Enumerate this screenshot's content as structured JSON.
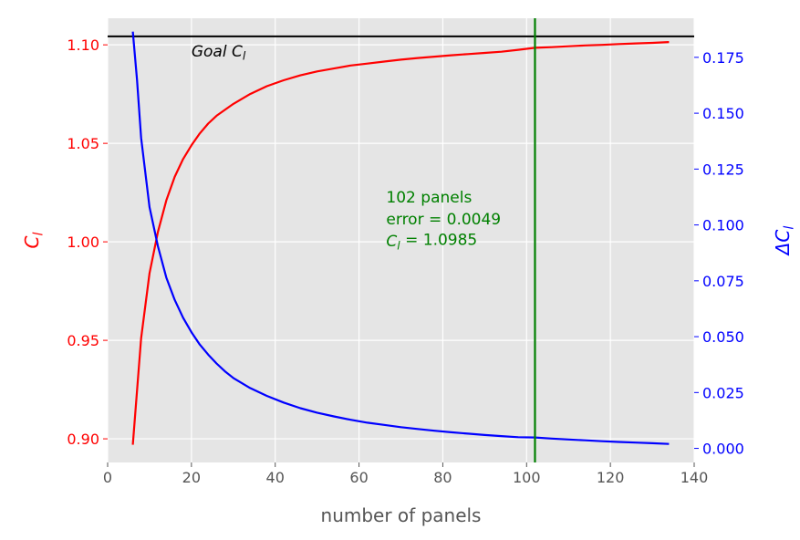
{
  "chart_data": {
    "type": "line",
    "xlabel": "number of panels",
    "ylabel_left": "C",
    "ylabel_left_sub": "l",
    "ylabel_right": "ΔC",
    "ylabel_right_sub": "l",
    "xlim": [
      0,
      140
    ],
    "ylim_left": [
      0.888,
      1.1135
    ],
    "ylim_right": [
      -0.0063,
      0.1925
    ],
    "grid": true,
    "background": "#e5e5e5",
    "x_ticks": [
      0,
      20,
      40,
      60,
      80,
      100,
      120,
      140
    ],
    "x_tick_labels": [
      "0",
      "20",
      "40",
      "60",
      "80",
      "100",
      "120",
      "140"
    ],
    "left_ticks": [
      0.9,
      0.95,
      1.0,
      1.05,
      1.1
    ],
    "left_tick_labels": [
      "0.90",
      "0.95",
      "1.00",
      "1.05",
      "1.10"
    ],
    "right_ticks": [
      0.0,
      0.025,
      0.05,
      0.075,
      0.1,
      0.125,
      0.15,
      0.175
    ],
    "right_tick_labels": [
      "0.000",
      "0.025",
      "0.050",
      "0.075",
      "0.100",
      "0.125",
      "0.150",
      "0.175"
    ],
    "series": [
      {
        "axis": "left",
        "color": "#ff0000",
        "x": [
          6,
          8,
          10,
          12,
          14,
          16,
          18,
          20,
          22,
          24,
          26,
          28,
          30,
          34,
          38,
          42,
          46,
          50,
          54,
          58,
          62,
          66,
          70,
          74,
          78,
          82,
          86,
          90,
          94,
          98,
          102,
          106,
          110,
          114,
          118,
          122,
          126,
          130,
          134
        ],
        "values": [
          0.897,
          0.951,
          0.984,
          1.005,
          1.021,
          1.033,
          1.042,
          1.049,
          1.055,
          1.06,
          1.064,
          1.067,
          1.07,
          1.075,
          1.079,
          1.082,
          1.0845,
          1.0865,
          1.088,
          1.0895,
          1.0905,
          1.0915,
          1.0925,
          1.0933,
          1.094,
          1.0947,
          1.0953,
          1.0959,
          1.0965,
          1.0975,
          1.0985,
          1.0988,
          1.0993,
          1.0997,
          1.1,
          1.1004,
          1.1007,
          1.101,
          1.1014
        ]
      },
      {
        "axis": "right",
        "color": "#0000ff",
        "x": [
          6,
          7,
          8,
          10,
          12,
          14,
          16,
          18,
          20,
          22,
          24,
          26,
          28,
          30,
          34,
          38,
          42,
          46,
          50,
          54,
          58,
          62,
          66,
          70,
          74,
          78,
          82,
          86,
          90,
          94,
          98,
          102,
          106,
          110,
          114,
          118,
          122,
          126,
          130,
          134
        ],
        "values": [
          0.1865,
          0.165,
          0.139,
          0.108,
          0.0905,
          0.0765,
          0.0665,
          0.0585,
          0.052,
          0.0465,
          0.042,
          0.038,
          0.0345,
          0.0315,
          0.027,
          0.0235,
          0.0205,
          0.018,
          0.016,
          0.0143,
          0.0128,
          0.0115,
          0.0105,
          0.0095,
          0.0087,
          0.0079,
          0.0072,
          0.0066,
          0.006,
          0.0055,
          0.005,
          0.0049,
          0.0044,
          0.004,
          0.0036,
          0.0032,
          0.0029,
          0.0026,
          0.0023,
          0.002
        ]
      }
    ],
    "goal_line": {
      "y": 1.1043,
      "color": "#000000",
      "label": "Goal C",
      "label_sub": "l",
      "label_x": 20
    },
    "marker_line": {
      "x": 102,
      "color": "#008000"
    },
    "annotation": {
      "color": "#008000",
      "x": 66.5,
      "lines": [
        "102 panels",
        "error = 0.0049"
      ],
      "last_prefix": "C",
      "last_sub": "l",
      "last_suffix": " = 1.0985"
    },
    "colors": {
      "left_axis": "#ff0000",
      "right_axis": "#0000ff",
      "bottom_axis": "#555555"
    }
  }
}
